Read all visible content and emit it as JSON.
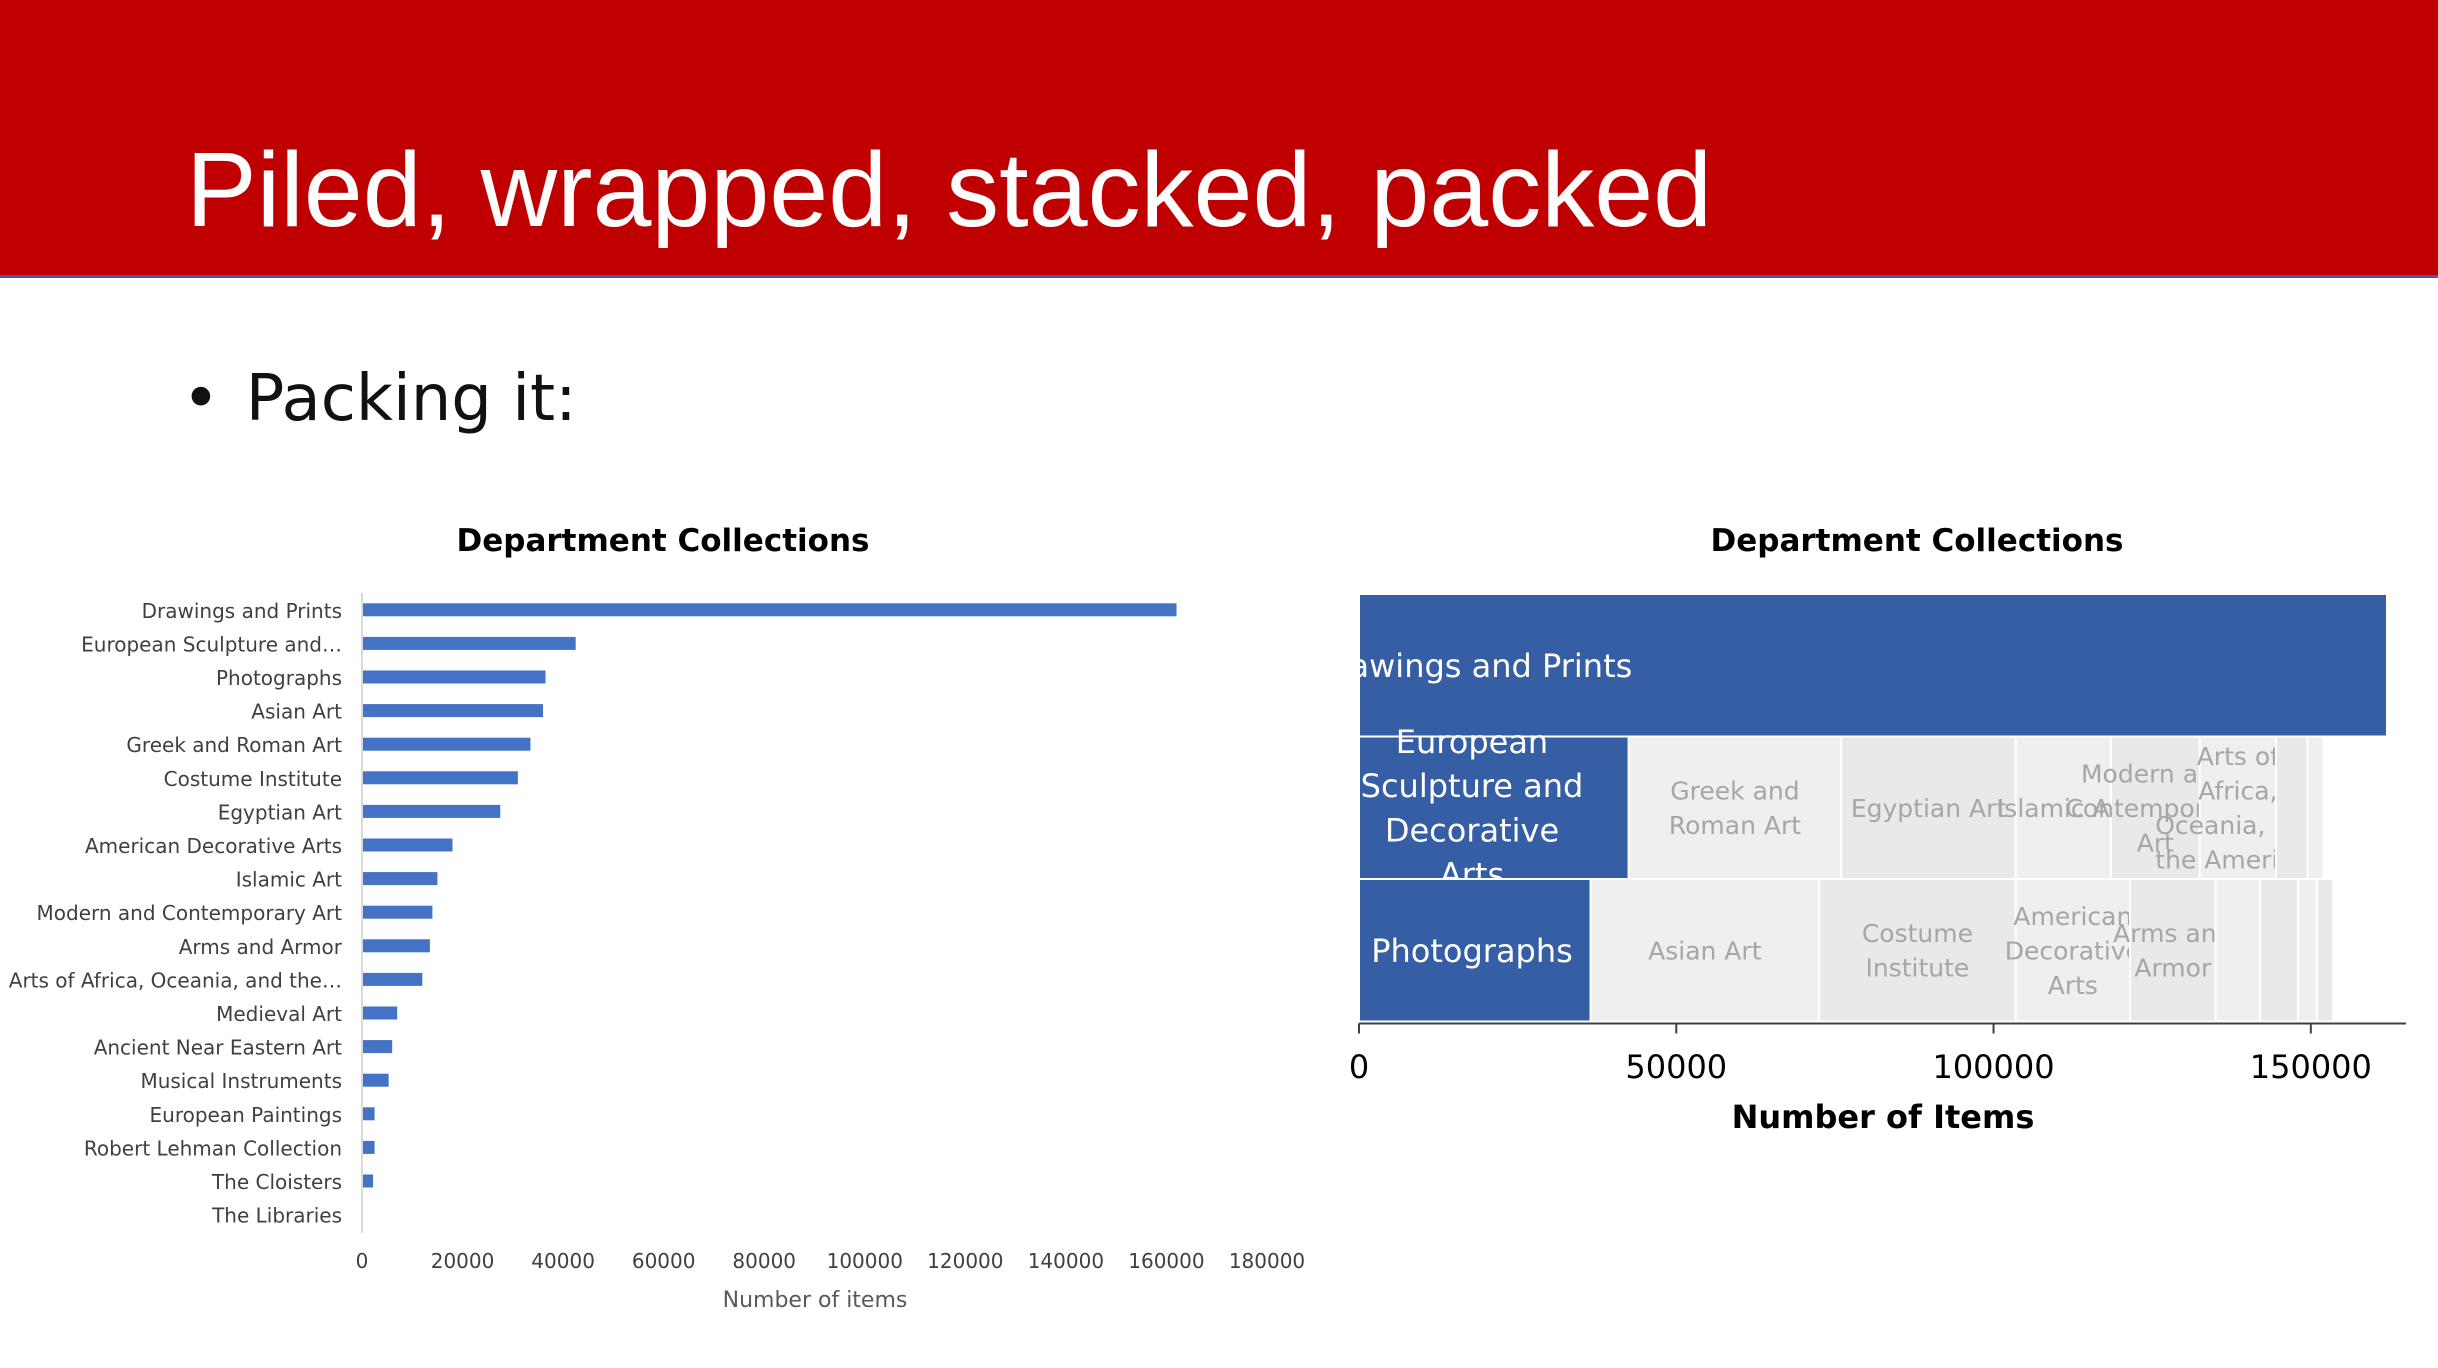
{
  "slide": {
    "title": "Piled, wrapped, stacked, packed",
    "bullet": "Packing it:"
  },
  "colors": {
    "title_bar": "#c00000",
    "bar_chart_bar": "#4472c4",
    "treemap_highlight": "#365ea5",
    "treemap_gray": "#e9e9e9",
    "treemap_gray_light": "#efefef",
    "treemap_gray_label": "#a6a6a6"
  },
  "chart_data": [
    {
      "type": "bar",
      "orientation": "horizontal",
      "title": "Department Collections",
      "xlabel": "Number of items",
      "ylabel": "",
      "xlim": [
        0,
        180000
      ],
      "x_ticks": [
        "0",
        "20000",
        "40000",
        "60000",
        "80000",
        "100000",
        "120000",
        "140000",
        "160000",
        "180000"
      ],
      "grid": false,
      "categories": [
        "Drawings and Prints",
        "European Sculpture and…",
        "Photographs",
        "Asian Art",
        "Greek and Roman Art",
        "Costume Institute",
        "Egyptian Art",
        "American Decorative Arts",
        "Islamic Art",
        "Modern and Contemporary Art",
        "Arms and Armor",
        "Arts of Africa, Oceania, and the…",
        "Medieval Art",
        "Ancient Near Eastern Art",
        "Musical Instruments",
        "European Paintings",
        "Robert Lehman Collection",
        "The Cloisters",
        "The Libraries"
      ],
      "values": [
        162000,
        42500,
        36500,
        36000,
        33500,
        31000,
        27500,
        18000,
        15000,
        14000,
        13500,
        12000,
        7000,
        6000,
        5300,
        2500,
        2500,
        2200,
        50
      ]
    },
    {
      "type": "treemap",
      "title": "Department Collections",
      "xlabel": "Number of Items",
      "xlim": [
        0,
        165000
      ],
      "x_ticks": [
        "0",
        "50000",
        "100000",
        "150000"
      ],
      "rows": [
        {
          "cells": [
            {
              "label": "Drawings and Prints",
              "value": 162000,
              "highlight": true
            }
          ]
        },
        {
          "cells": [
            {
              "label": "European Sculpture and Decorative Arts",
              "value": 42500,
              "highlight": true
            },
            {
              "label": "Greek and Roman Art",
              "value": 33500
            },
            {
              "label": "Egyptian Art",
              "value": 27500
            },
            {
              "label": "Islamic Art",
              "value": 15000
            },
            {
              "label": "Modern and Contemporary Art",
              "value": 14000
            },
            {
              "label": "Arts of Africa, Oceania, and the Americas",
              "value": 12000
            },
            {
              "label": "",
              "value": 5000
            },
            {
              "label": "",
              "value": 2500
            }
          ]
        },
        {
          "cells": [
            {
              "label": "Photographs",
              "value": 36500,
              "highlight": true
            },
            {
              "label": "Asian Art",
              "value": 36000
            },
            {
              "label": "Costume Institute",
              "value": 31000
            },
            {
              "label": "American Decorative Arts",
              "value": 18000
            },
            {
              "label": "Arms and Armor",
              "value": 13500
            },
            {
              "label": "",
              "value": 7000
            },
            {
              "label": "",
              "value": 6000
            },
            {
              "label": "",
              "value": 3000
            },
            {
              "label": "",
              "value": 2500
            }
          ]
        }
      ]
    }
  ]
}
